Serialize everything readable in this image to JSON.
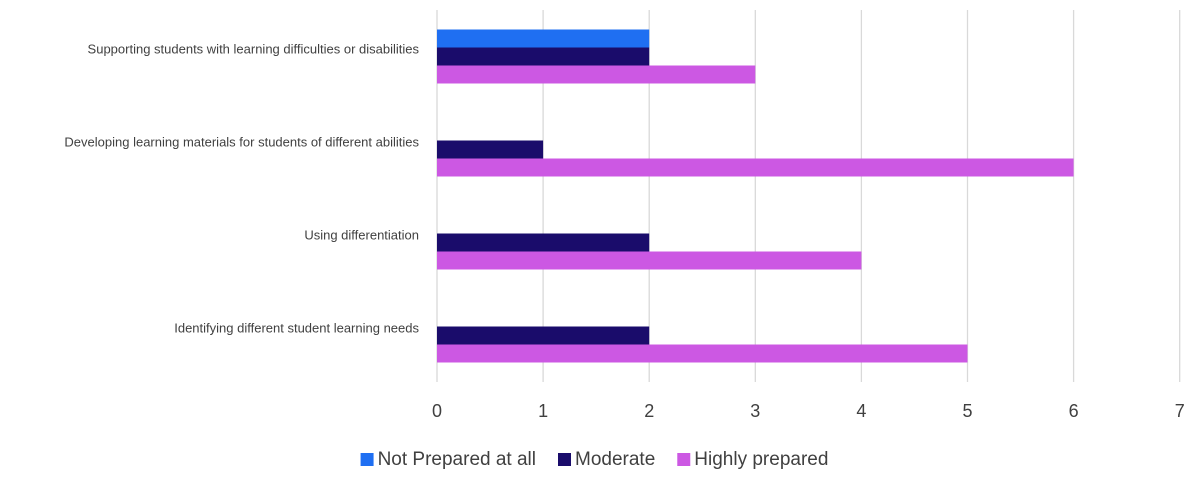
{
  "chart_data": {
    "type": "bar",
    "orientation": "horizontal",
    "categories": [
      "Identifying different student learning needs",
      "Using differentiation",
      "Developing learning materials for students of different abilities",
      "Supporting students with learning difficulties or disabilities"
    ],
    "series": [
      {
        "name": "Not Prepared at all",
        "values": [
          0,
          0,
          0,
          2
        ],
        "color": "#1f6ff2"
      },
      {
        "name": "Moderate",
        "values": [
          2,
          2,
          1,
          2
        ],
        "color": "#1a0c6b"
      },
      {
        "name": "Highly prepared",
        "values": [
          5,
          4,
          6,
          3
        ],
        "color": "#cc58e3"
      }
    ],
    "xlim": [
      0,
      7
    ],
    "xticks": [
      "0",
      "1",
      "2",
      "3",
      "4",
      "5",
      "6",
      "7"
    ],
    "grid": true,
    "legend_position": "bottom",
    "title": "",
    "xlabel": "",
    "ylabel": ""
  }
}
